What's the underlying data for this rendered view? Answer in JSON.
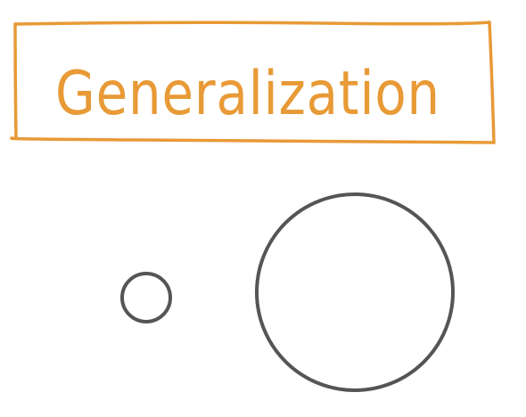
{
  "title": {
    "text": "Generalization"
  },
  "colors": {
    "accent": "#E89A36",
    "stroke": "#555555",
    "background": "#ffffff"
  },
  "shapes": {
    "small_circle": "circle",
    "large_circle": "circle"
  }
}
